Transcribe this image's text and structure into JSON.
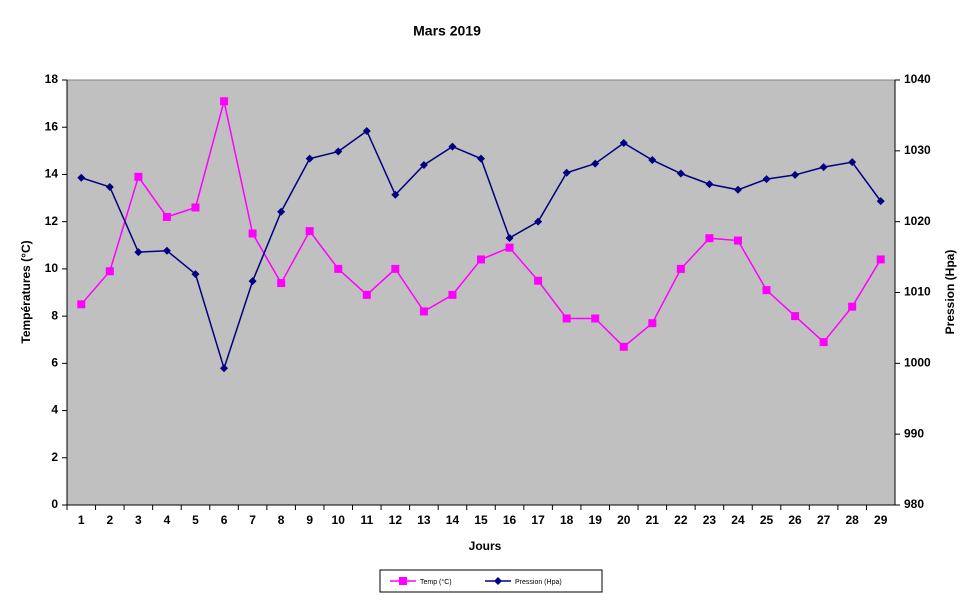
{
  "chart_data": {
    "type": "line",
    "title": "Mars 2019",
    "x_label": "Jours",
    "y_label": "Températures (°C)",
    "y2_label": "Pression (Hpa)",
    "categories": [
      "1",
      "2",
      "3",
      "4",
      "5",
      "6",
      "7",
      "8",
      "9",
      "10",
      "11",
      "12",
      "13",
      "14",
      "15",
      "16",
      "17",
      "18",
      "19",
      "20",
      "21",
      "22",
      "23",
      "24",
      "25",
      "26",
      "27",
      "28",
      "29"
    ],
    "series": [
      {
        "name": "Temp (°C)",
        "color": "#ff00ff",
        "marker": "square",
        "values": [
          8.5,
          9.9,
          13.9,
          12.2,
          12.6,
          17.1,
          11.5,
          9.4,
          11.6,
          10.0,
          8.9,
          10.0,
          8.2,
          8.9,
          10.4,
          10.9,
          9.5,
          7.9,
          7.9,
          6.7,
          7.7,
          10.0,
          11.3,
          11.2,
          9.1,
          8.0,
          6.9,
          8.4,
          10.4
        ]
      },
      {
        "name": "Pression (Hpa)",
        "color": "#000080",
        "marker": "diamond",
        "axis": "y2",
        "values": [
          1026.2,
          1024.9,
          1015.7,
          1015.9,
          1012.6,
          999.3,
          1011.6,
          1021.4,
          1028.9,
          1029.9,
          1032.8,
          1023.8,
          1028.0,
          1030.6,
          1028.9,
          1017.7,
          1020.0,
          1026.9,
          1028.2,
          1031.1,
          1028.7,
          1026.8,
          1025.3,
          1024.5,
          1026.0,
          1026.6,
          1027.7,
          1028.4,
          1022.9
        ]
      }
    ],
    "ylim": [
      0,
      18
    ],
    "yticks": [
      0,
      2,
      4,
      6,
      8,
      10,
      12,
      14,
      16,
      18
    ],
    "y2lim": [
      980,
      1040
    ],
    "y2ticks": [
      980,
      990,
      1000,
      1010,
      1020,
      1030,
      1040
    ],
    "plot_background": "#c0c0c0",
    "legend": "bottom"
  }
}
